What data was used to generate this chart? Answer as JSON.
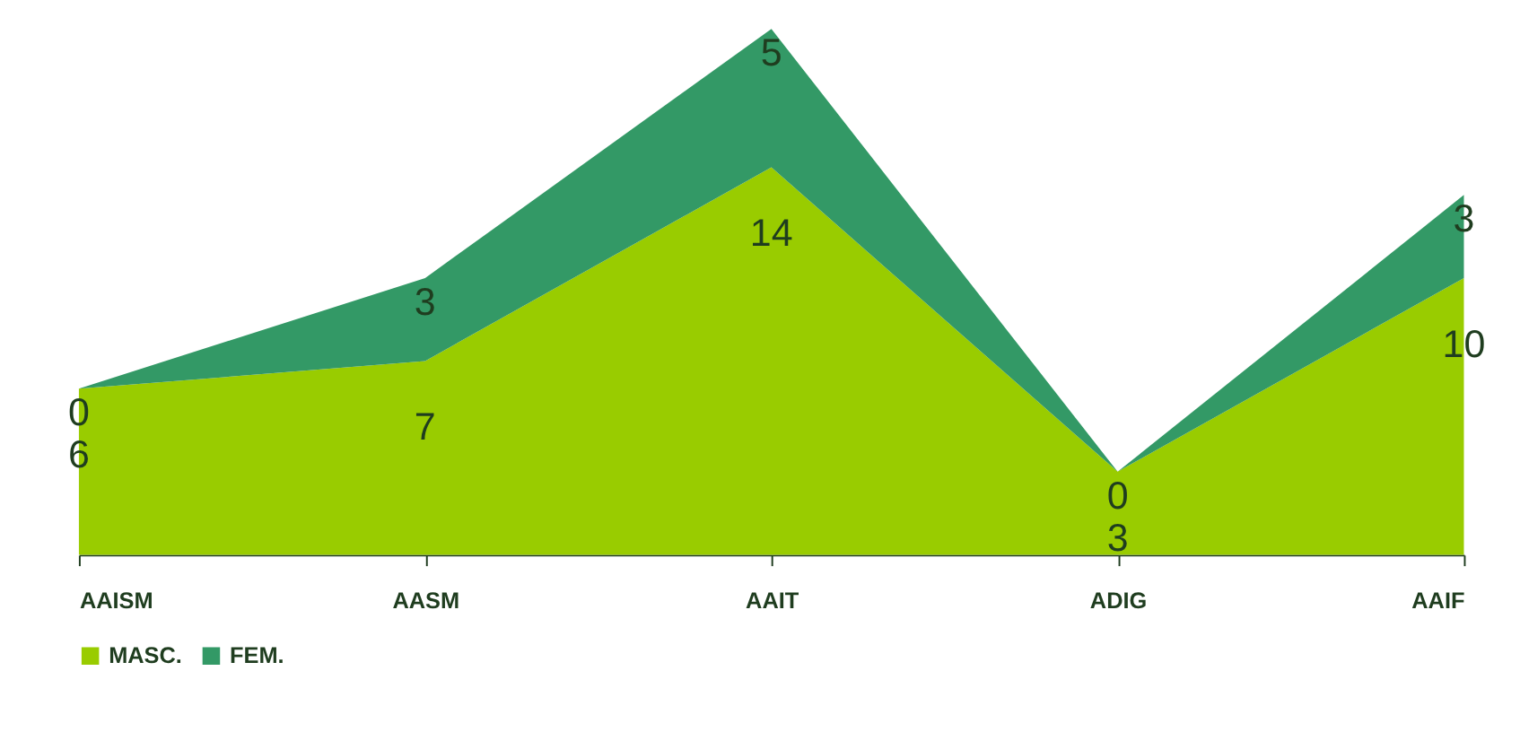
{
  "chart_data": {
    "type": "area",
    "stacked": true,
    "data_labels": true,
    "legend": "bottom",
    "grid": false,
    "categories": [
      "AAISM",
      "AASM",
      "AAIT",
      "ADIG",
      "AAIF"
    ],
    "series": [
      {
        "name": "MASC.",
        "color": "#99cc00",
        "values": [
          6,
          7,
          14,
          3,
          10
        ]
      },
      {
        "name": "FEM.",
        "color": "#339966",
        "values": [
          0,
          3,
          5,
          0,
          3
        ]
      }
    ]
  }
}
